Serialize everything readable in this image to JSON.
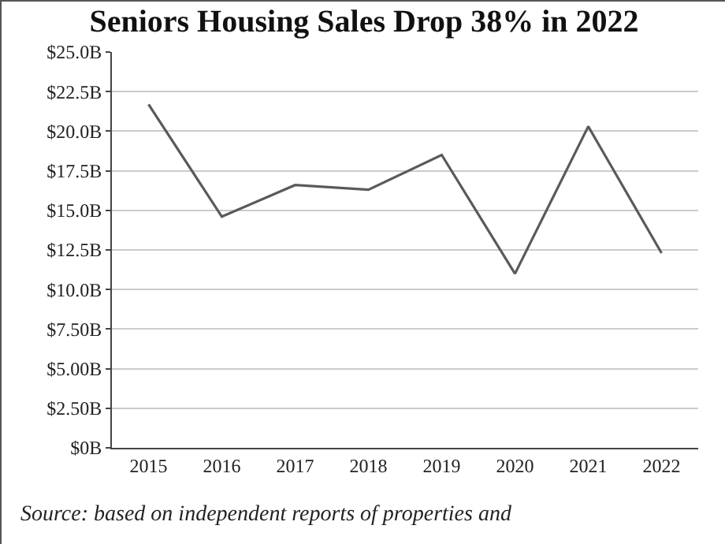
{
  "chart_data": {
    "type": "line",
    "title": "Seniors Housing Sales Drop 38% in 2022",
    "categories": [
      "2015",
      "2016",
      "2017",
      "2018",
      "2019",
      "2020",
      "2021",
      "2022"
    ],
    "series": [
      {
        "color": "#5a5a5a",
        "values": [
          21.7,
          14.6,
          16.6,
          16.3,
          18.5,
          11.0,
          20.3,
          12.3
        ]
      }
    ],
    "ylim": [
      0,
      25
    ],
    "yticks": [
      {
        "value": 0,
        "label": "$0B"
      },
      {
        "value": 2.5,
        "label": "$2.50B"
      },
      {
        "value": 5,
        "label": "$5.00B"
      },
      {
        "value": 7.5,
        "label": "$7.50B"
      },
      {
        "value": 10,
        "label": "$10.0B"
      },
      {
        "value": 12.5,
        "label": "$12.5B"
      },
      {
        "value": 15,
        "label": "$15.0B"
      },
      {
        "value": 17.5,
        "label": "$17.5B"
      },
      {
        "value": 20,
        "label": "$20.0B"
      },
      {
        "value": 22.5,
        "label": "$22.5B"
      },
      {
        "value": 25,
        "label": "$25.0B"
      }
    ],
    "grid": "y",
    "marker": "none",
    "line_style": "solid",
    "annotations": [
      "Source: based on independent reports of properties and"
    ]
  }
}
